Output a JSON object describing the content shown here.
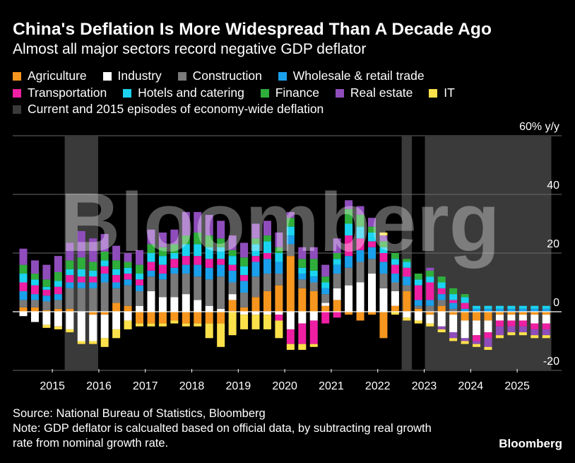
{
  "title": "China's Deflation Is More Widespread Than A Decade Ago",
  "subtitle": "Almost all major sectors record negative GDP deflator",
  "legend": [
    {
      "label": "Agriculture",
      "color": "#f7961e"
    },
    {
      "label": "Industry",
      "color": "#ffffff"
    },
    {
      "label": "Construction",
      "color": "#7a7a7a"
    },
    {
      "label": "Wholesale & retail trade",
      "color": "#1a9fea"
    },
    {
      "label": "Transportation",
      "color": "#ee1fa2"
    },
    {
      "label": "Hotels and catering",
      "color": "#1bd3f0"
    },
    {
      "label": "Finance",
      "color": "#2fae3c"
    },
    {
      "label": "Real estate",
      "color": "#8f4dbb"
    },
    {
      "label": "IT",
      "color": "#fde14b"
    },
    {
      "label": "Current and 2015 episodes of economy-wide deflation",
      "color": "#3a3a3a"
    }
  ],
  "watermark": "Bloomberg",
  "source": "Source: National Bureau of Statistics, Bloomberg",
  "note_line1": "Note: GDP deflator is calcualted based on official data, by subtracting real growth",
  "note_line2": "rate from nominal growth rate.",
  "brand": "Bloomberg",
  "chart_data": {
    "type": "bar",
    "stacked": true,
    "unit_label": "60% y/y",
    "y_ticks": [
      40,
      20,
      0,
      -20
    ],
    "ylim": [
      -20,
      60
    ],
    "x_ticks": [
      "2015",
      "2016",
      "2017",
      "2018",
      "2019",
      "2020",
      "2021",
      "2022",
      "2023",
      "2024",
      "2025"
    ],
    "series_order": [
      "Agriculture",
      "Industry",
      "Construction",
      "Wholesale & retail trade",
      "Transportation",
      "Hotels and catering",
      "Finance",
      "Real estate",
      "IT"
    ],
    "quarters": [
      {
        "period": "2014 Q3",
        "values": [
          1.5,
          -1.5,
          2.5,
          3,
          3,
          3,
          3,
          5.5,
          0
        ]
      },
      {
        "period": "2014 Q4",
        "values": [
          1.5,
          -3.5,
          2.5,
          2,
          3,
          2,
          2,
          4.5,
          0
        ]
      },
      {
        "period": "2015 Q1",
        "values": [
          0.5,
          -4.5,
          3,
          2,
          2,
          1,
          2.5,
          5,
          -1
        ]
      },
      {
        "period": "2015 Q2",
        "values": [
          1,
          -5,
          3,
          2,
          2.5,
          2,
          3,
          5.5,
          -1
        ]
      },
      {
        "period": "2015 Q3",
        "values": [
          1,
          -6,
          7,
          2,
          2.5,
          2,
          3,
          6,
          -1
        ]
      },
      {
        "period": "2015 Q4",
        "values": [
          0,
          -10,
          8,
          2,
          2,
          2.5,
          4,
          9,
          -1
        ]
      },
      {
        "period": "2016 Q1",
        "values": [
          -1,
          -9,
          8,
          2,
          2,
          2,
          3,
          8,
          -1
        ]
      },
      {
        "period": "2016 Q2",
        "values": [
          -1,
          -8,
          10,
          3,
          2.5,
          2,
          3,
          6,
          -3
        ]
      },
      {
        "period": "2016 Q3",
        "values": [
          3,
          -6,
          5,
          2,
          2.5,
          2,
          3,
          5,
          -3
        ]
      },
      {
        "period": "2016 Q4",
        "values": [
          2,
          -3,
          7,
          2,
          2,
          2,
          2,
          3,
          -3
        ]
      },
      {
        "period": "2017 Q1",
        "values": [
          -4,
          2,
          5,
          2,
          2,
          2,
          3,
          5,
          -1
        ]
      },
      {
        "period": "2017 Q2",
        "values": [
          -4,
          7,
          5,
          2,
          3,
          3,
          3,
          5,
          -1
        ]
      },
      {
        "period": "2017 Q3",
        "values": [
          -4,
          5,
          6,
          2,
          3,
          3,
          3,
          5,
          -1
        ]
      },
      {
        "period": "2017 Q4",
        "values": [
          -3,
          5,
          8,
          2,
          3,
          2,
          3,
          5,
          -1
        ]
      },
      {
        "period": "2018 Q1",
        "values": [
          -4,
          6,
          7,
          3,
          3,
          4,
          3,
          8,
          -1
        ]
      },
      {
        "period": "2018 Q2",
        "values": [
          -4,
          4,
          8,
          4,
          3,
          4,
          4,
          7,
          -1
        ]
      },
      {
        "period": "2018 Q3",
        "values": [
          -4,
          2,
          9,
          4,
          3,
          4,
          4,
          7,
          -5
        ]
      },
      {
        "period": "2018 Q4",
        "values": [
          -4,
          1,
          11,
          4,
          2,
          4,
          3,
          6,
          -8
        ]
      },
      {
        "period": "2019 Q1",
        "values": [
          4,
          2,
          4,
          4,
          2,
          3,
          2,
          5,
          -8
        ]
      },
      {
        "period": "2019 Q2",
        "values": [
          1.5,
          -1,
          5,
          4,
          2,
          3,
          3,
          5,
          -5
        ]
      },
      {
        "period": "2019 Q3",
        "values": [
          5,
          -1,
          7,
          5,
          2,
          4,
          2,
          5,
          -5
        ]
      },
      {
        "period": "2019 Q4",
        "values": [
          7,
          -1,
          6,
          5,
          2,
          4,
          2,
          5,
          -5
        ]
      },
      {
        "period": "2020 Q1",
        "values": [
          9,
          -1,
          4,
          4,
          -2,
          3,
          2,
          5,
          -6
        ]
      },
      {
        "period": "2020 Q2",
        "values": [
          19,
          -6,
          4,
          3,
          -5,
          3,
          3,
          2,
          -2
        ]
      },
      {
        "period": "2020 Q3",
        "values": [
          8,
          -4,
          3,
          2,
          -7,
          2,
          3,
          4,
          -2
        ]
      },
      {
        "period": "2020 Q4",
        "values": [
          7,
          -3,
          3,
          2,
          -8,
          2,
          4,
          4,
          -1
        ]
      },
      {
        "period": "2021 Q1",
        "values": [
          2,
          1,
          3,
          2,
          -4,
          2,
          2,
          4,
          0
        ]
      },
      {
        "period": "2021 Q2",
        "values": [
          4,
          4,
          5,
          3,
          -2,
          2,
          2,
          5,
          0
        ]
      },
      {
        "period": "2021 Q3",
        "values": [
          -1,
          9,
          6,
          4,
          7,
          4,
          5,
          3,
          0
        ]
      },
      {
        "period": "2021 Q4",
        "values": [
          -3,
          10,
          7,
          4,
          4,
          4,
          4,
          3,
          0
        ]
      },
      {
        "period": "2022 Q1",
        "values": [
          -1,
          13,
          5,
          4,
          2,
          3,
          2,
          3,
          0
        ]
      },
      {
        "period": "2022 Q2",
        "values": [
          -9,
          8,
          5,
          4,
          3,
          2,
          2,
          2,
          1
        ]
      },
      {
        "period": "2022 Q3",
        "values": [
          2,
          5,
          3,
          3,
          3,
          2,
          2,
          0,
          -1
        ]
      },
      {
        "period": "2022 Q4",
        "values": [
          7,
          -2,
          2,
          3,
          3,
          2,
          1,
          0,
          -1
        ]
      },
      {
        "period": "2023 Q1",
        "values": [
          1,
          -3,
          1,
          2,
          5,
          2,
          2,
          0,
          -1
        ]
      },
      {
        "period": "2023 Q2",
        "values": [
          -1,
          -3,
          2,
          2,
          6,
          2,
          2,
          1,
          -1
        ]
      },
      {
        "period": "2023 Q3",
        "values": [
          2,
          -5,
          2,
          2,
          2,
          2,
          2,
          -1,
          -1
        ]
      },
      {
        "period": "2023 Q4",
        "values": [
          -1,
          -6,
          1,
          2,
          1,
          2,
          2,
          -2,
          -1
        ]
      },
      {
        "period": "2024 Q1",
        "values": [
          -3,
          -6,
          0,
          1,
          2,
          2,
          1,
          -1,
          -1
        ]
      },
      {
        "period": "2024 Q2",
        "values": [
          -3,
          -5,
          0,
          1,
          -2,
          1,
          0,
          -1,
          -1
        ]
      },
      {
        "period": "2024 Q3",
        "values": [
          -3,
          -4,
          0,
          1,
          -2,
          1,
          0,
          -3,
          -1
        ]
      },
      {
        "period": "2024 Q4",
        "values": [
          -1,
          -2,
          0,
          1,
          -2,
          1,
          0,
          -3,
          -1
        ]
      },
      {
        "period": "2025 Q1",
        "values": [
          -1,
          -2,
          0,
          1,
          -2,
          1,
          0,
          -2,
          -1
        ]
      },
      {
        "period": "2025 Q2",
        "values": [
          -1,
          -2,
          0,
          1,
          -2,
          1,
          0,
          -2,
          -1
        ]
      },
      {
        "period": "2025 Q3",
        "values": [
          -1,
          -3,
          0,
          1,
          -2,
          1,
          0,
          -2,
          -1
        ]
      },
      {
        "period": "2025 Q4",
        "values": [
          -1,
          -3,
          0,
          1,
          -2,
          1,
          0,
          -2,
          -1
        ]
      }
    ],
    "deflation_episodes": [
      {
        "start": "2015 Q3",
        "end": "2016 Q1"
      },
      {
        "start": "2022 Q4",
        "end": "2022 Q4"
      },
      {
        "start": "2023 Q2",
        "end": "2025 Q4"
      }
    ]
  }
}
